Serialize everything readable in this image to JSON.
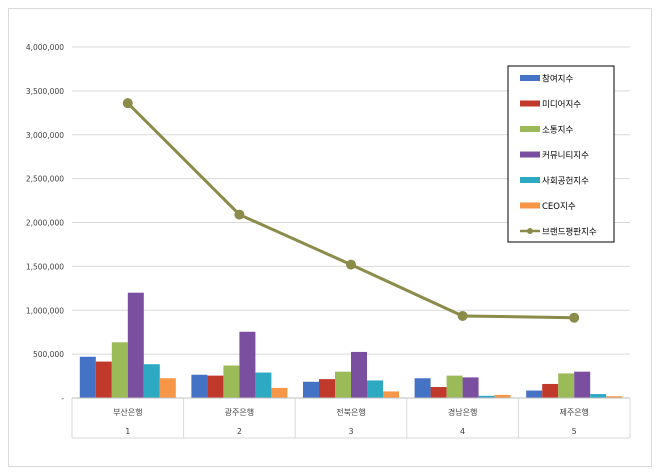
{
  "chart_data": {
    "type": "bar",
    "categories": [
      "부산은행",
      "광주은행",
      "전북은행",
      "경남은행",
      "제주은행"
    ],
    "category_numbers": [
      "1",
      "2",
      "3",
      "4",
      "5"
    ],
    "ylim": [
      0,
      4000000
    ],
    "yticks": [
      {
        "value": 0,
        "label": "-"
      },
      {
        "value": 500000,
        "label": "500,000"
      },
      {
        "value": 1000000,
        "label": "1,000,000"
      },
      {
        "value": 1500000,
        "label": "1,500,000"
      },
      {
        "value": 2000000,
        "label": "2,000,000"
      },
      {
        "value": 2500000,
        "label": "2,500,000"
      },
      {
        "value": 3000000,
        "label": "3,000,000"
      },
      {
        "value": 3500000,
        "label": "3,500,000"
      },
      {
        "value": 4000000,
        "label": "4,000,000"
      }
    ],
    "grid": true,
    "legend_position": "top-right",
    "series": [
      {
        "name": "참여지수",
        "kind": "bar",
        "color": "#4472c4",
        "values": [
          470000,
          265000,
          185000,
          225000,
          85000
        ]
      },
      {
        "name": "미디어지수",
        "kind": "bar",
        "color": "#c0392b",
        "values": [
          415000,
          255000,
          215000,
          125000,
          160000
        ]
      },
      {
        "name": "소통지수",
        "kind": "bar",
        "color": "#9bbb59",
        "values": [
          635000,
          370000,
          300000,
          255000,
          280000
        ]
      },
      {
        "name": "커뮤니티지수",
        "kind": "bar",
        "color": "#7b4fa0",
        "values": [
          1200000,
          755000,
          525000,
          235000,
          300000
        ]
      },
      {
        "name": "사회공헌지수",
        "kind": "bar",
        "color": "#2ea9c4",
        "values": [
          385000,
          290000,
          200000,
          25000,
          45000
        ]
      },
      {
        "name": "CEO지수",
        "kind": "bar",
        "color": "#f79646",
        "values": [
          225000,
          115000,
          75000,
          35000,
          20000
        ]
      },
      {
        "name": "브랜드평판지수",
        "kind": "line",
        "color": "#8b8b4a",
        "values": [
          3360000,
          2090000,
          1520000,
          935000,
          915000
        ]
      }
    ]
  }
}
